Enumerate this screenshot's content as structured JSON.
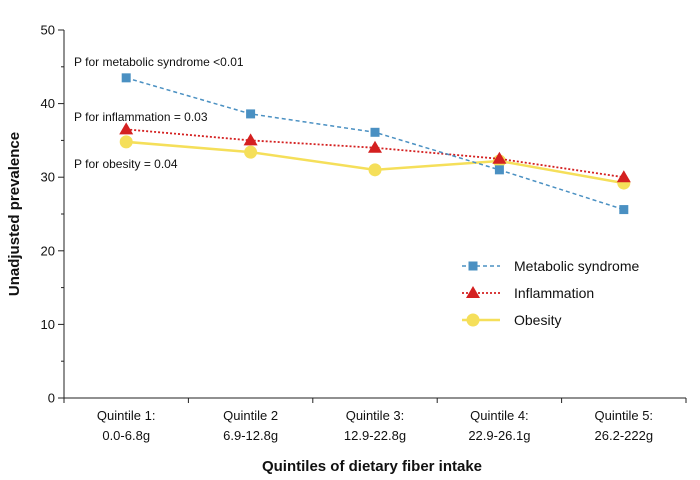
{
  "chart_data": {
    "type": "line",
    "title": "",
    "xlabel": "Quintiles of dietary fiber intake",
    "ylabel": "Unadjusted prevalence",
    "ylim": [
      0,
      50
    ],
    "yticks": [
      0,
      10,
      20,
      30,
      40,
      50
    ],
    "categories": [
      {
        "line1": "Quintile 1:",
        "line2": "0.0-6.8g"
      },
      {
        "line1": "Quintile 2",
        "line2": "6.9-12.8g"
      },
      {
        "line1": "Quintile 3:",
        "line2": "12.9-22.8g"
      },
      {
        "line1": "Quintile 4:",
        "line2": "22.9-26.1g"
      },
      {
        "line1": "Quintile 5:",
        "line2": "26.2-222g"
      }
    ],
    "series": [
      {
        "name": "Metabolic syndrome",
        "marker": "square",
        "dash": "dashed",
        "color": "#4a90c2",
        "values": [
          43.5,
          38.6,
          36.1,
          31.0,
          25.6
        ]
      },
      {
        "name": "Inflammation",
        "marker": "triangle",
        "dash": "dotted",
        "color": "#d42020",
        "values": [
          36.5,
          35.0,
          34.0,
          32.5,
          30.0
        ]
      },
      {
        "name": "Obesity",
        "marker": "circle",
        "dash": "solid",
        "color": "#f5df5a",
        "values": [
          34.8,
          33.4,
          31.0,
          32.2,
          29.2
        ]
      }
    ],
    "annotations": [
      "P for metabolic syndrome <0.01",
      "P for inflammation = 0.03",
      "P for obesity = 0.04"
    ],
    "legend_position": "bottom-right"
  }
}
